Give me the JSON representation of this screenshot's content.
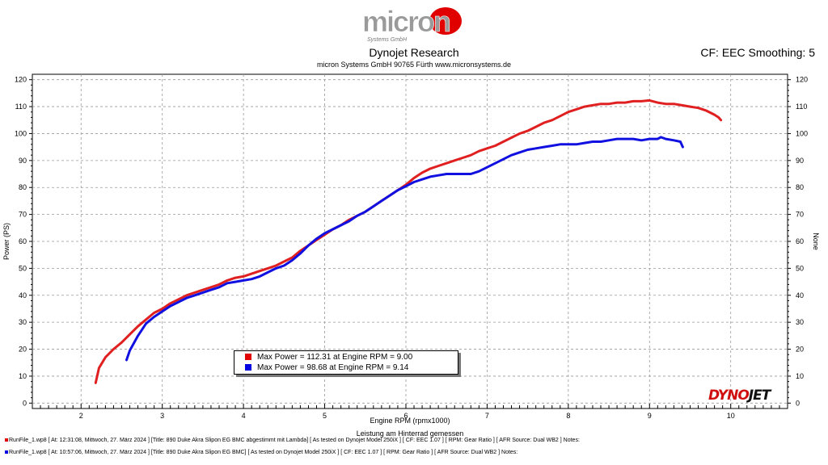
{
  "header": {
    "logo_text": "micron",
    "logo_sub": "Systems GmbH",
    "title": "Dynojet Research",
    "subtitle": "micron Systems GmbH  90765 Fürth www.micronsystems.de",
    "cf": "CF: EEC Smoothing: 5"
  },
  "footer": {
    "note": "Leistung am Hinterrad gemessen",
    "runs": [
      {
        "color": "#e00000",
        "text": "RunFile_1.wp8 [ At: 12:31:08, Mittwoch, 27. März 2024 ] [Title: 890 Duke Akra Slipon EG BMC abgestimmt mit Lambda]  [ As tested on Dynojet Model 250iX ] [ CF: EEC 1.07 ] [ RPM: Gear Ratio ] [ AFR Source: Dual WB2 ] Notes:"
      },
      {
        "color": "#0000e0",
        "text": "RunFile_1.wp8 [ At: 10:57:06, Mittwoch, 27. März 2024 ] [Title: 890 Duke Akra Slipon EG BMC]  [ As tested on Dynojet Model 250iX ] [ CF: EEC 1.07 ] [ RPM: Gear Ratio ] [ AFR Source: Dual WB2 ] Notes:"
      }
    ],
    "brand_a": "DYNO",
    "brand_b": "JET"
  },
  "chart_data": {
    "type": "line",
    "xlabel": "Engine RPM (rpmx1000)",
    "ylabel": "Power (PS)",
    "ylabel_right": "None",
    "xlim": [
      1.4,
      10.7
    ],
    "ylim": [
      -2,
      122
    ],
    "x_ticks": [
      2,
      3,
      4,
      5,
      6,
      7,
      8,
      9,
      10
    ],
    "y_ticks": [
      0,
      10,
      20,
      30,
      40,
      50,
      60,
      70,
      80,
      90,
      100,
      110,
      120
    ],
    "grid": true,
    "series": [
      {
        "color": "#e02020",
        "x": [
          2.18,
          2.22,
          2.3,
          2.4,
          2.5,
          2.6,
          2.7,
          2.8,
          2.9,
          3.0,
          3.1,
          3.2,
          3.3,
          3.4,
          3.5,
          3.6,
          3.7,
          3.8,
          3.9,
          4.0,
          4.1,
          4.2,
          4.3,
          4.4,
          4.5,
          4.6,
          4.7,
          4.8,
          4.9,
          5.0,
          5.1,
          5.2,
          5.3,
          5.4,
          5.5,
          5.6,
          5.7,
          5.8,
          5.9,
          6.0,
          6.1,
          6.2,
          6.3,
          6.4,
          6.5,
          6.6,
          6.7,
          6.8,
          6.9,
          7.0,
          7.1,
          7.2,
          7.3,
          7.4,
          7.5,
          7.6,
          7.7,
          7.8,
          7.9,
          8.0,
          8.1,
          8.2,
          8.3,
          8.4,
          8.5,
          8.6,
          8.7,
          8.8,
          8.9,
          9.0,
          9.1,
          9.2,
          9.3,
          9.4,
          9.5,
          9.6,
          9.7,
          9.8,
          9.85,
          9.88
        ],
        "y": [
          7.5,
          13,
          17,
          20,
          22.5,
          25.5,
          28.5,
          31,
          33.5,
          35,
          37,
          38.5,
          40,
          41,
          42,
          43,
          44,
          45.5,
          46.5,
          47,
          48,
          49,
          50,
          51,
          52.5,
          54,
          56.5,
          58.5,
          60.5,
          62.5,
          64.5,
          66,
          68,
          69.5,
          71,
          73,
          75,
          77,
          79,
          81,
          83.5,
          85.5,
          87,
          88,
          89,
          90,
          91,
          92,
          93.5,
          94.5,
          95.5,
          97,
          98.5,
          100,
          101,
          102.5,
          104,
          105,
          106.5,
          108,
          109,
          110,
          110.5,
          111,
          111,
          111.5,
          111.5,
          112,
          112,
          112.3,
          111.5,
          111,
          111,
          110.5,
          110,
          109.5,
          108.5,
          107,
          106,
          105
        ]
      },
      {
        "color": "#1010e0",
        "x": [
          2.56,
          2.6,
          2.7,
          2.8,
          2.9,
          3.0,
          3.1,
          3.2,
          3.3,
          3.4,
          3.5,
          3.6,
          3.7,
          3.8,
          3.9,
          4.0,
          4.1,
          4.2,
          4.3,
          4.4,
          4.5,
          4.6,
          4.7,
          4.8,
          4.9,
          5.0,
          5.1,
          5.2,
          5.3,
          5.4,
          5.5,
          5.6,
          5.7,
          5.8,
          5.9,
          6.0,
          6.1,
          6.2,
          6.3,
          6.4,
          6.5,
          6.6,
          6.7,
          6.8,
          6.9,
          7.0,
          7.1,
          7.2,
          7.3,
          7.4,
          7.5,
          7.6,
          7.7,
          7.8,
          7.9,
          8.0,
          8.1,
          8.2,
          8.3,
          8.4,
          8.5,
          8.6,
          8.7,
          8.8,
          8.9,
          9.0,
          9.1,
          9.14,
          9.2,
          9.3,
          9.38,
          9.41
        ],
        "y": [
          16,
          19.5,
          25,
          29.5,
          32,
          34,
          36,
          37.5,
          39,
          40,
          41,
          42,
          43,
          44.5,
          45,
          45.5,
          46,
          47,
          48.5,
          50,
          51,
          53,
          55.5,
          58.5,
          61,
          63,
          64.5,
          66,
          67.5,
          69.5,
          71,
          73,
          75,
          77,
          79,
          80.5,
          82,
          83,
          84,
          84.5,
          85,
          85,
          85,
          85,
          86,
          87.5,
          89,
          90.5,
          92,
          93,
          94,
          94.5,
          95,
          95.5,
          96,
          96,
          96,
          96.5,
          97,
          97,
          97.5,
          98,
          98,
          98,
          97.5,
          98,
          98,
          98.68,
          98,
          97.5,
          97,
          95
        ]
      }
    ],
    "legend": [
      {
        "color": "#e00000",
        "text": "Max Power = 112.31 at Engine RPM = 9.00"
      },
      {
        "color": "#0000e0",
        "text": "Max Power = 98.68 at Engine RPM = 9.14"
      }
    ]
  }
}
